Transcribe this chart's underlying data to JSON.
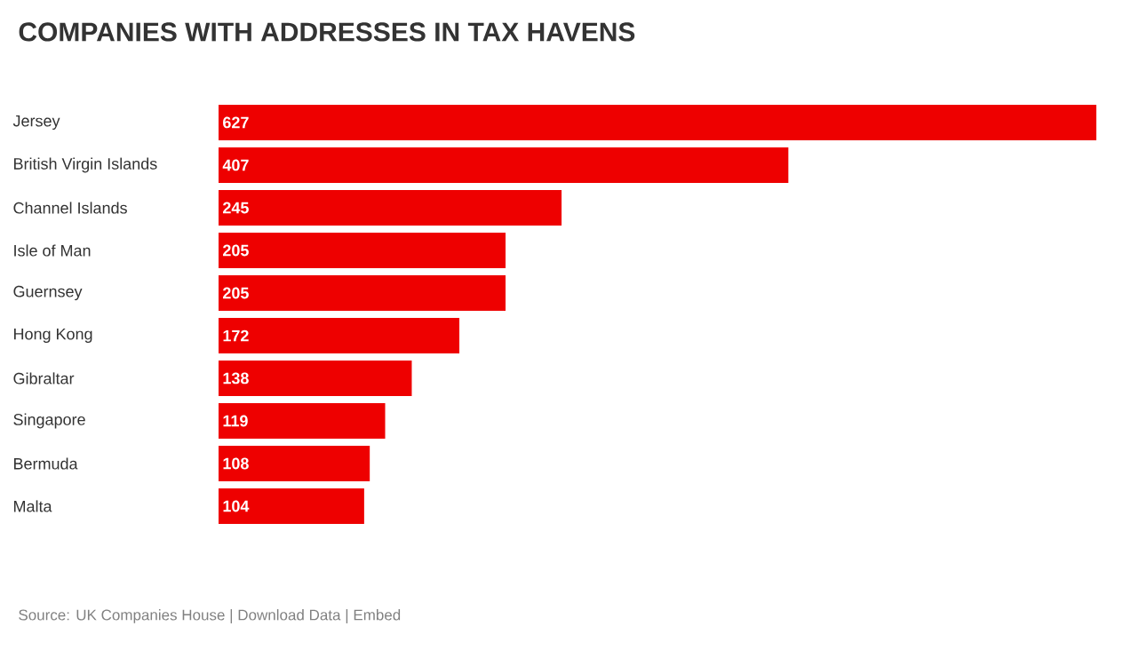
{
  "chart_data": {
    "type": "bar",
    "orientation": "horizontal",
    "title": "COMPANIES WITH ADDRESSES IN TAX HAVENS",
    "categories": [
      "Jersey",
      "British Virgin Islands",
      "Channel Islands",
      "Isle of Man",
      "Guernsey",
      "Hong Kong",
      "Gibraltar",
      "Singapore",
      "Bermuda",
      "Malta"
    ],
    "values": [
      627,
      407,
      245,
      205,
      205,
      172,
      138,
      119,
      108,
      104
    ],
    "color": "#ee0000",
    "data_labels": true,
    "annotations": [
      "Source: UK Companies House | Download Data | Embed"
    ]
  }
}
